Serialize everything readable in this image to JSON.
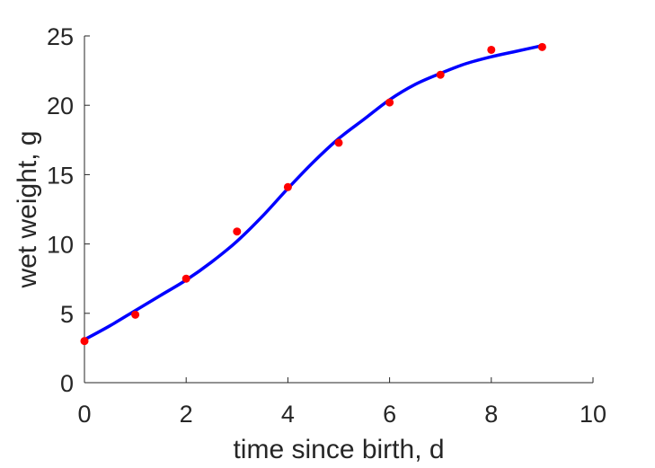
{
  "chart_data": {
    "type": "scatter",
    "title": "",
    "xlabel": "time since birth, d",
    "ylabel": "wet weight, g",
    "xlim": [
      0,
      10
    ],
    "ylim": [
      0,
      25
    ],
    "xticks": [
      "0",
      "2",
      "4",
      "6",
      "8",
      "10"
    ],
    "yticks": [
      "0",
      "5",
      "10",
      "15",
      "20",
      "25"
    ],
    "grid": false,
    "legend": "none",
    "series": [
      {
        "kind": "points",
        "color": "#ff0000",
        "x": [
          0,
          1,
          2,
          3,
          4,
          5,
          6,
          7,
          8,
          9
        ],
        "y": [
          3.0,
          4.9,
          7.5,
          10.9,
          14.1,
          17.3,
          20.2,
          22.2,
          24.0,
          24.2
        ]
      },
      {
        "kind": "line",
        "color": "#0000ff",
        "x": [
          0,
          0.5,
          1,
          1.5,
          2,
          2.5,
          3,
          3.5,
          4,
          4.5,
          5,
          5.5,
          6,
          6.5,
          7,
          7.5,
          8,
          8.5,
          9
        ],
        "y": [
          3.1,
          4.1,
          5.2,
          6.3,
          7.4,
          8.7,
          10.2,
          12.0,
          14.0,
          15.9,
          17.6,
          19.0,
          20.4,
          21.5,
          22.3,
          23.0,
          23.5,
          23.9,
          24.3
        ]
      }
    ]
  }
}
